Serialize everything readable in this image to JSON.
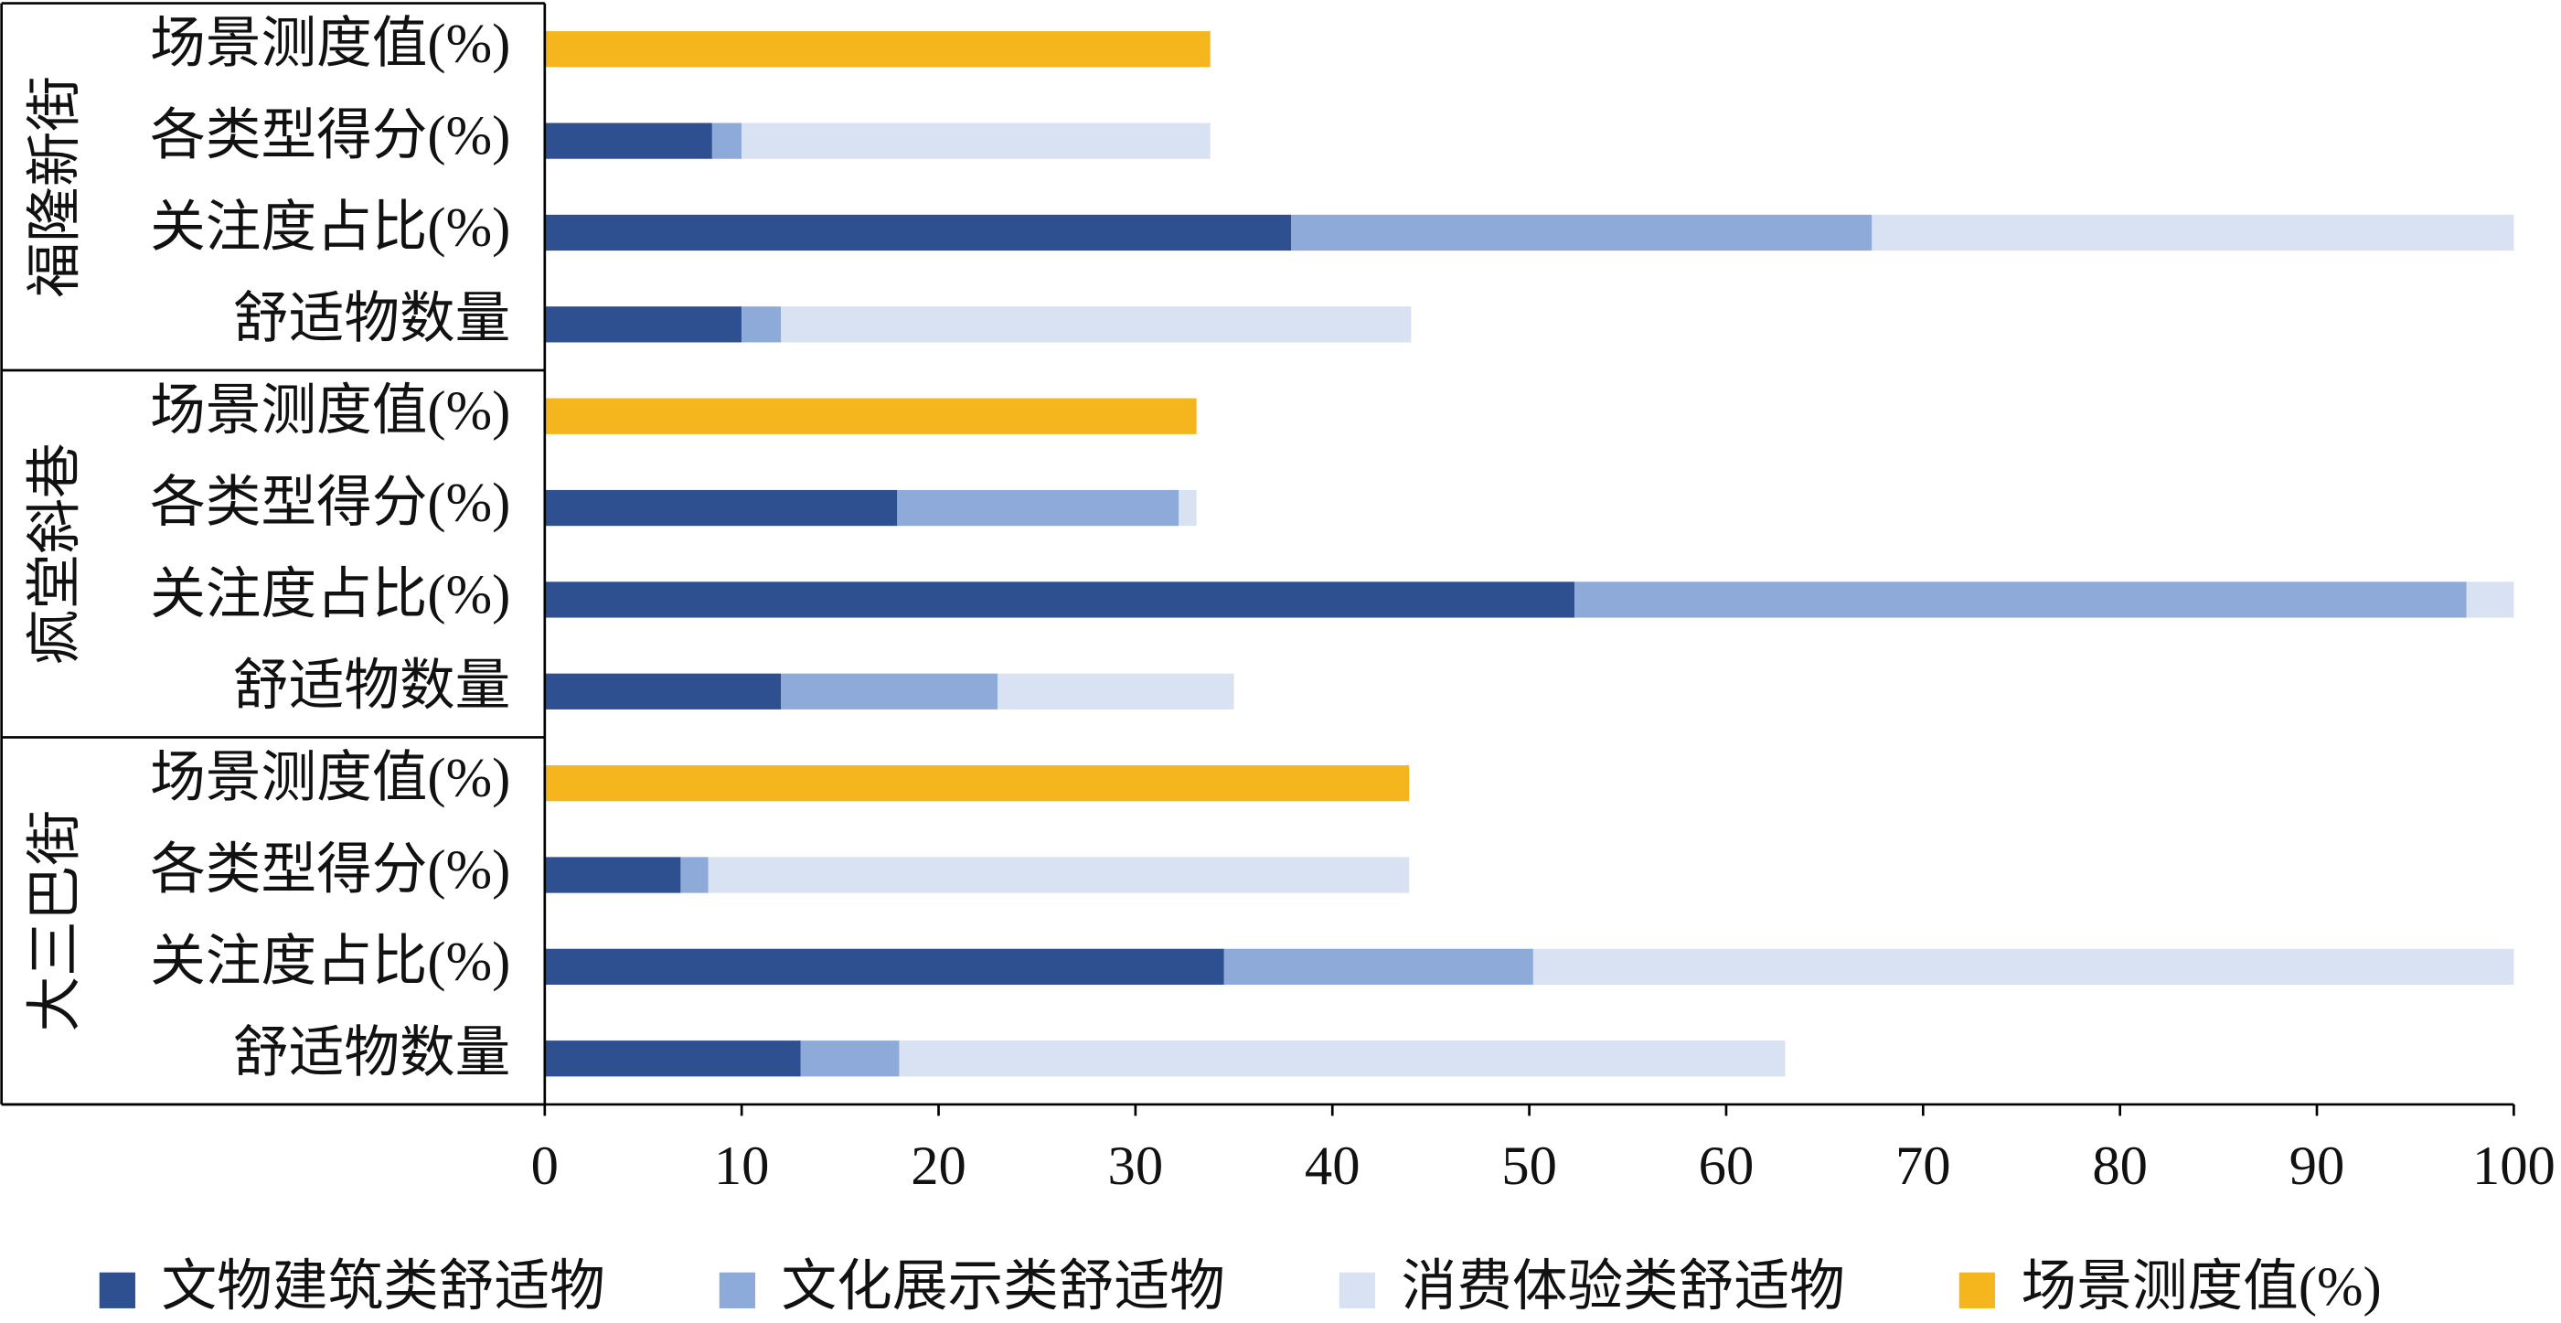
{
  "chart_data": {
    "type": "stacked-bar-horizontal",
    "groups": [
      {
        "name": "福隆新街",
        "categories": [
          "场景测度值(%)",
          "各类型得分(%)",
          "关注度占比(%)",
          "舒适物数量"
        ]
      },
      {
        "name": "疯堂斜巷",
        "categories": [
          "场景测度值(%)",
          "各类型得分(%)",
          "关注度占比(%)",
          "舒适物数量"
        ]
      },
      {
        "name": "大三巴街",
        "categories": [
          "场景测度值(%)",
          "各类型得分(%)",
          "关注度占比(%)",
          "舒适物数量"
        ]
      }
    ],
    "series": [
      {
        "name": "文物建筑类舒适物",
        "color": "#2e5090",
        "values": [
          null,
          8.5,
          37.9,
          10,
          null,
          17.9,
          52.3,
          12,
          null,
          6.9,
          34.5,
          13
        ]
      },
      {
        "name": "文化展示类舒适物",
        "color": "#8eaad8",
        "values": [
          null,
          1.5,
          29.5,
          2,
          null,
          14.3,
          45.3,
          11,
          null,
          1.4,
          15.7,
          5
        ]
      },
      {
        "name": "消费体验类舒适物",
        "color": "#d9e2f2",
        "values": [
          null,
          23.8,
          32.6,
          32,
          null,
          0.9,
          2.4,
          12,
          null,
          35.6,
          49.8,
          45
        ]
      },
      {
        "name": "场景测度值(%)",
        "color": "#f5b51c",
        "values": [
          33.8,
          null,
          null,
          null,
          33.1,
          null,
          null,
          null,
          43.9,
          null,
          null,
          null
        ]
      }
    ],
    "xlim": [
      0,
      100
    ],
    "xticks": [
      0,
      10,
      20,
      30,
      40,
      50,
      60,
      70,
      80,
      90,
      100
    ]
  }
}
